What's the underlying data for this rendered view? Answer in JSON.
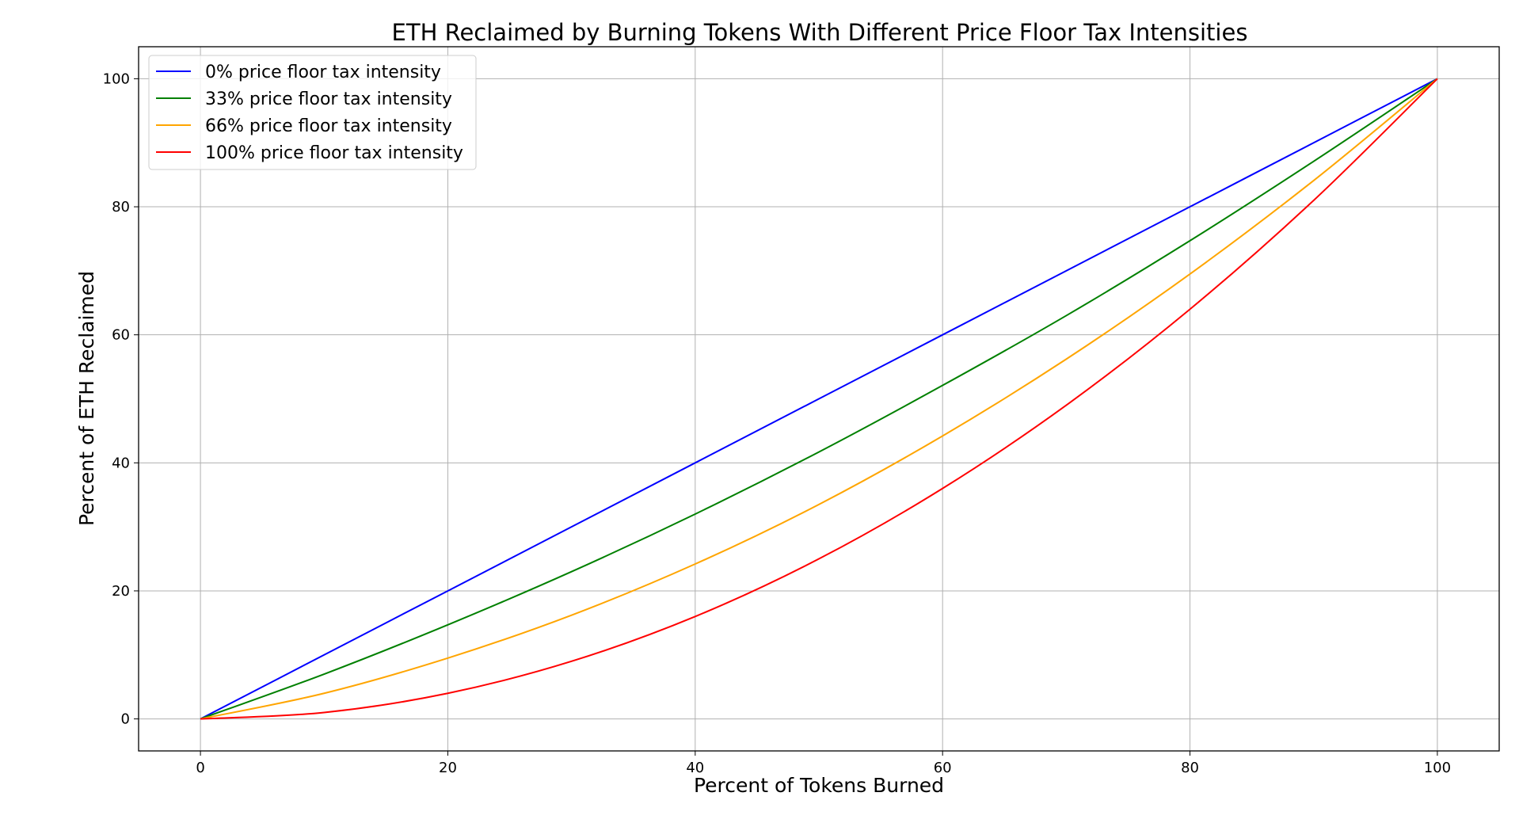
{
  "chart_data": {
    "type": "line",
    "title": "ETH Reclaimed by Burning Tokens With Different Price Floor Tax Intensities",
    "xlabel": "Percent of Tokens Burned",
    "ylabel": "Percent of ETH Reclaimed",
    "xlim": [
      -5,
      105
    ],
    "ylim": [
      -5,
      105
    ],
    "xticks": [
      0,
      20,
      40,
      60,
      80,
      100
    ],
    "yticks": [
      0,
      20,
      40,
      60,
      80,
      100
    ],
    "grid": true,
    "legend_position": "top-left",
    "x": [
      0,
      10,
      20,
      30,
      40,
      50,
      60,
      70,
      80,
      90,
      100
    ],
    "series": [
      {
        "name": "0% price floor tax intensity",
        "color": "#0000ff",
        "values": [
          0,
          10,
          20,
          30,
          40,
          50,
          60,
          70,
          80,
          90,
          100
        ]
      },
      {
        "name": "33% price floor tax intensity",
        "color": "#008000",
        "values": [
          0,
          7,
          14.7,
          23,
          32,
          41.7,
          52.1,
          63,
          74.7,
          87.1,
          100
        ]
      },
      {
        "name": "66% price floor tax intensity",
        "color": "#ffa500",
        "values": [
          0,
          4,
          9.5,
          16.2,
          24.2,
          33.5,
          44.2,
          56.2,
          69.5,
          84.1,
          100
        ]
      },
      {
        "name": "100% price floor tax intensity",
        "color": "#ff0000",
        "values": [
          0,
          1,
          4,
          9,
          16,
          25,
          36,
          49,
          64,
          81,
          100
        ]
      }
    ]
  }
}
